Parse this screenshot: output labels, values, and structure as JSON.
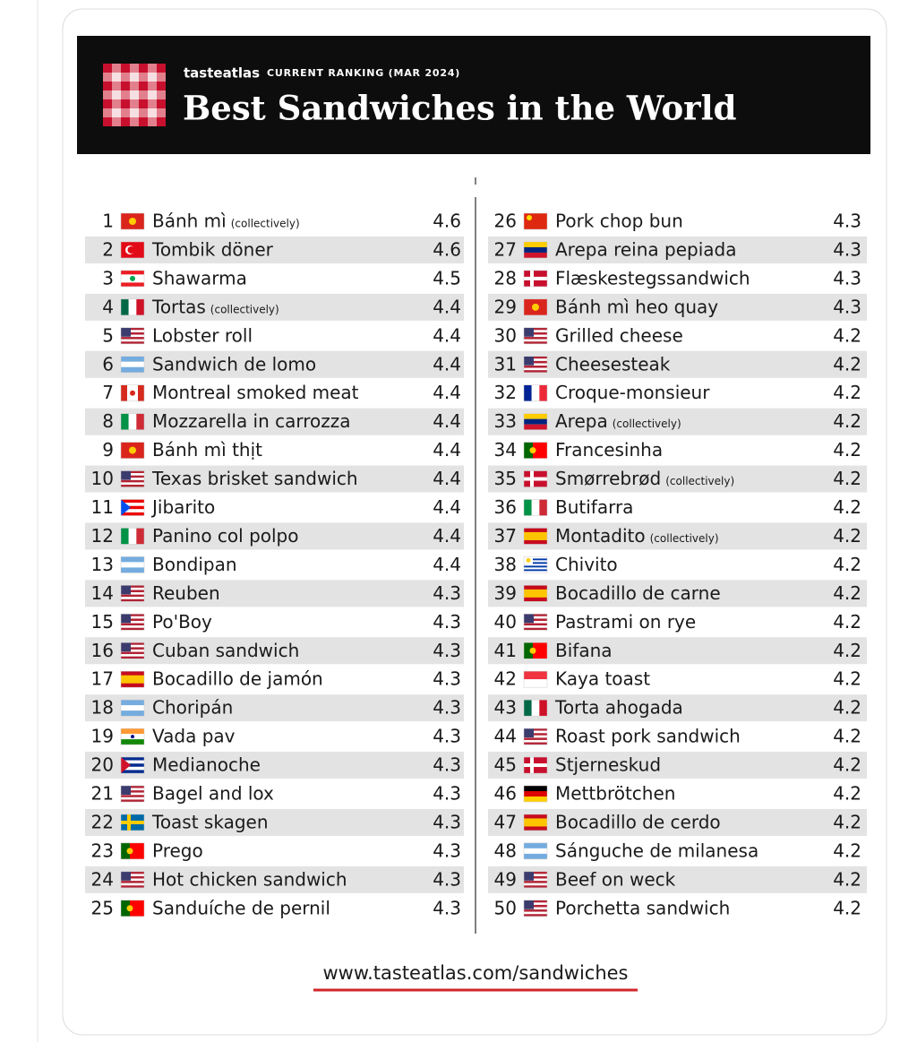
{
  "header": {
    "brand": "tasteatlas",
    "subtitle": "CURRENT RANKING (MAR 2024)",
    "title": "Best Sandwiches in the World"
  },
  "rows": [
    {
      "rank": 1,
      "name": "Bánh mì",
      "note": "(collectively)",
      "rating": 4.6
    },
    {
      "rank": 2,
      "name": "Tombik döner",
      "rating": 4.6
    },
    {
      "rank": 3,
      "name": "Shawarma",
      "rating": 4.5
    },
    {
      "rank": 4,
      "name": "Tortas",
      "note": "(collectively)",
      "rating": 4.4
    },
    {
      "rank": 5,
      "name": "Lobster roll",
      "rating": 4.4
    },
    {
      "rank": 6,
      "name": "Sandwich de lomo",
      "rating": 4.4
    },
    {
      "rank": 7,
      "name": "Montreal smoked meat",
      "rating": 4.4
    },
    {
      "rank": 8,
      "name": "Mozzarella in carrozza",
      "rating": 4.4
    },
    {
      "rank": 9,
      "name": "Bánh mì thịt",
      "rating": 4.4
    },
    {
      "rank": 10,
      "name": "Texas brisket sandwich",
      "rating": 4.4
    },
    {
      "rank": 11,
      "name": "Jibarito",
      "rating": 4.4
    },
    {
      "rank": 12,
      "name": "Panino col polpo",
      "rating": 4.4
    },
    {
      "rank": 13,
      "name": "Bondipan",
      "rating": 4.4
    },
    {
      "rank": 14,
      "name": "Reuben",
      "rating": 4.3
    },
    {
      "rank": 15,
      "name": "Po'Boy",
      "rating": 4.3
    },
    {
      "rank": 16,
      "name": "Cuban sandwich",
      "rating": 4.3
    },
    {
      "rank": 17,
      "name": "Bocadillo de jamón",
      "rating": 4.3
    },
    {
      "rank": 18,
      "name": "Choripán",
      "rating": 4.3
    },
    {
      "rank": 19,
      "name": "Vada pav",
      "rating": 4.3
    },
    {
      "rank": 20,
      "name": "Medianoche",
      "rating": 4.3
    },
    {
      "rank": 21,
      "name": "Bagel and lox",
      "rating": 4.3
    },
    {
      "rank": 22,
      "name": "Toast skagen",
      "rating": 4.3
    },
    {
      "rank": 23,
      "name": "Prego",
      "rating": 4.3
    },
    {
      "rank": 24,
      "name": "Hot chicken sandwich",
      "rating": 4.3
    },
    {
      "rank": 25,
      "name": "Sanduíche de pernil",
      "rating": 4.3
    },
    {
      "rank": 26,
      "name": "Pork chop bun",
      "rating": 4.3
    },
    {
      "rank": 27,
      "name": "Arepa reina pepiada",
      "rating": 4.3
    },
    {
      "rank": 28,
      "name": "Flæskestegssandwich",
      "rating": 4.3
    },
    {
      "rank": 29,
      "name": "Bánh mì heo quay",
      "rating": 4.3
    },
    {
      "rank": 30,
      "name": "Grilled cheese",
      "rating": 4.2
    },
    {
      "rank": 31,
      "name": "Cheesesteak",
      "rating": 4.2
    },
    {
      "rank": 32,
      "name": "Croque-monsieur",
      "rating": 4.2
    },
    {
      "rank": 33,
      "name": "Arepa",
      "note": "(collectively)",
      "rating": 4.2
    },
    {
      "rank": 34,
      "name": "Francesinha",
      "rating": 4.2
    },
    {
      "rank": 35,
      "name": "Smørrebrød",
      "note": "(collectively)",
      "rating": 4.2
    },
    {
      "rank": 36,
      "name": "Butifarra",
      "rating": 4.2
    },
    {
      "rank": 37,
      "name": "Montadito",
      "note": "(collectively)",
      "rating": 4.2
    },
    {
      "rank": 38,
      "name": "Chivito",
      "rating": 4.2
    },
    {
      "rank": 39,
      "name": "Bocadillo de carne",
      "rating": 4.2
    },
    {
      "rank": 40,
      "name": "Pastrami on rye",
      "rating": 4.2
    },
    {
      "rank": 41,
      "name": "Bifana",
      "rating": 4.2
    },
    {
      "rank": 42,
      "name": "Kaya toast",
      "rating": 4.2
    },
    {
      "rank": 43,
      "name": "Torta ahogada",
      "rating": 4.2
    },
    {
      "rank": 44,
      "name": "Roast pork sandwich",
      "rating": 4.2
    },
    {
      "rank": 45,
      "name": "Stjerneskud",
      "rating": 4.2
    },
    {
      "rank": 46,
      "name": "Mettbrötchen",
      "rating": 4.2
    },
    {
      "rank": 47,
      "name": "Bocadillo de cerdo",
      "rating": 4.2
    },
    {
      "rank": 48,
      "name": "Sánguche de milanesa",
      "rating": 4.2
    },
    {
      "rank": 49,
      "name": "Beef on weck",
      "rating": 4.2
    },
    {
      "rank": 50,
      "name": "Porchetta sandwich",
      "rating": 4.2
    }
  ],
  "footer": {
    "url": "www.tasteatlas.com/sandwiches"
  }
}
